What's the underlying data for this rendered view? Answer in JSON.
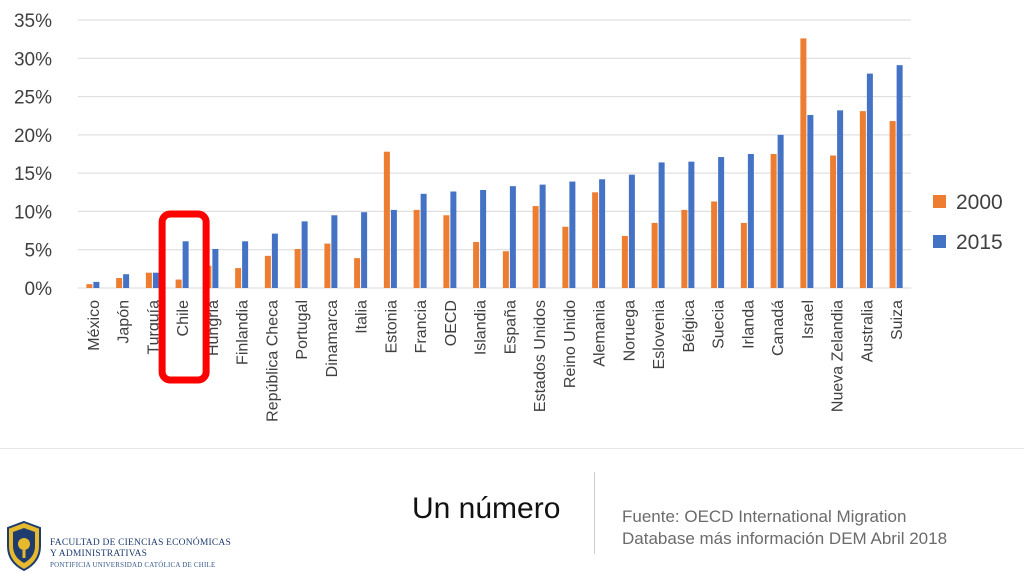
{
  "chart_data": {
    "type": "bar",
    "categories": [
      "México",
      "Japón",
      "Turquía",
      "Chile",
      "Hungria",
      "Finlandia",
      "República Checa",
      "Portugal",
      "Dinamarca",
      "Italia",
      "Estonia",
      "Francia",
      "OECD",
      "Islandia",
      "España",
      "Estados Unidos",
      "Reino Unido",
      "Alemania",
      "Noruega",
      "Eslovenia",
      "Bélgica",
      "Suecia",
      "Irlanda",
      "Canadá",
      "Israel",
      "Nueva Zelandia",
      "Australia",
      "Suiza"
    ],
    "series": [
      {
        "name": "2000",
        "color": "#ED7D31",
        "values": [
          0.5,
          1.3,
          2.0,
          1.1,
          2.9,
          2.6,
          4.2,
          5.1,
          5.8,
          3.9,
          17.8,
          10.2,
          9.5,
          6.0,
          4.8,
          10.7,
          8.0,
          12.5,
          6.8,
          8.5,
          10.2,
          11.3,
          8.5,
          17.5,
          32.6,
          17.3,
          23.1,
          21.8
        ]
      },
      {
        "name": "2015",
        "color": "#4472C4",
        "values": [
          0.8,
          1.8,
          2.0,
          6.1,
          5.1,
          6.1,
          7.1,
          8.7,
          9.5,
          9.9,
          10.2,
          12.3,
          12.6,
          12.8,
          13.3,
          13.5,
          13.9,
          14.2,
          14.8,
          16.4,
          16.5,
          17.1,
          17.5,
          20.0,
          22.6,
          23.2,
          28.0,
          29.1
        ]
      }
    ],
    "yticks": [
      "0%",
      "5%",
      "10%",
      "15%",
      "20%",
      "25%",
      "30%",
      "35%"
    ],
    "ylim": [
      0,
      35
    ],
    "grid": true,
    "legend_position": "right",
    "highlight": {
      "category": "Chile",
      "color": "#FF0000"
    }
  },
  "caption": "Un número",
  "source": {
    "line1": "Fuente: OECD International Migration",
    "line2": "Database más información DEM Abril 2018"
  },
  "logo": {
    "line1": "FACULTAD DE CIENCIAS ECONÓMICAS",
    "line2": "Y ADMINISTRATIVAS",
    "line3": "PONTIFICIA UNIVERSIDAD CATÓLICA DE CHILE"
  }
}
